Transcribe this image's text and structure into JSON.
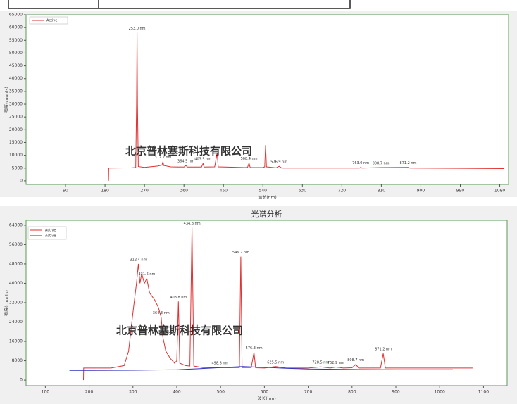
{
  "chart_data": [
    {
      "type": "line",
      "x_label": "波长(nm)",
      "y_label": "强度(counts)",
      "grid": false,
      "xlim": [
        0,
        1100
      ],
      "xticks": [
        90,
        180,
        270,
        360,
        450,
        540,
        630,
        720,
        810,
        900,
        990,
        1080
      ],
      "ylim": [
        -1400,
        65000
      ],
      "yticks": [
        0,
        5000,
        10000,
        15000,
        20000,
        25000,
        30000,
        35000,
        40000,
        45000,
        50000,
        55000,
        60000,
        65000
      ],
      "legend": "upper left",
      "series": [
        {
          "name": "Active",
          "color": "#e03030",
          "x": [
            188,
            188.5,
            240,
            250,
            252,
            253,
            254,
            256,
            270,
            300,
            310,
            312.2,
            314,
            330,
            360,
            364.5,
            368,
            400,
            403.5,
            406,
            430,
            435.8,
            438,
            500,
            505,
            508.4,
            511,
            540,
            544,
            546.1,
            548,
            570,
            576.9,
            583,
            700,
            760,
            763,
            766,
            808.7,
            871.2,
            875,
            1000,
            1090
          ],
          "values": [
            0,
            5000,
            5100,
            5200,
            30000,
            58000,
            30000,
            5600,
            5300,
            5800,
            6200,
            7500,
            6000,
            5500,
            5400,
            6000,
            5400,
            5400,
            6800,
            5400,
            5500,
            11000,
            5500,
            5200,
            5300,
            7000,
            5200,
            5200,
            5500,
            14000,
            5500,
            5100,
            5700,
            5000,
            5000,
            5000,
            5300,
            5000,
            5200,
            5300,
            5000,
            4900,
            4800
          ]
        }
      ],
      "peaks": [
        {
          "label": "253.0 nm",
          "x": 253.0,
          "y": 58000
        },
        {
          "label": "312.2 nm",
          "x": 312.2,
          "y": 7500
        },
        {
          "label": "364.5 nm",
          "x": 364.5,
          "y": 6000
        },
        {
          "label": "403.5 nm",
          "x": 403.5,
          "y": 6800
        },
        {
          "label": "508.4 nm",
          "x": 508.4,
          "y": 7000
        },
        {
          "label": "576.9 nm",
          "x": 576.9,
          "y": 5700
        },
        {
          "label": "763.0 nm",
          "x": 763.0,
          "y": 5300
        },
        {
          "label": "808.7 nm",
          "x": 808.7,
          "y": 5200
        },
        {
          "label": "871.2 nm",
          "x": 871.2,
          "y": 5300
        }
      ],
      "watermark": {
        "text": "北京普林塞斯科技有限公司",
        "color": "#111111"
      }
    },
    {
      "type": "line",
      "title": "光谱分析",
      "x_label": "波长(nm)",
      "y_label": "强度(counts)",
      "grid": false,
      "xlim": [
        56,
        1154
      ],
      "xticks": [
        100,
        200,
        300,
        400,
        500,
        600,
        700,
        800,
        900,
        1000,
        1100
      ],
      "ylim": [
        -2300,
        66000
      ],
      "yticks": [
        0,
        8000,
        16000,
        24000,
        32000,
        40000,
        48000,
        56000,
        64000
      ],
      "legend": "upper left",
      "series": [
        {
          "name": "Active",
          "color": "#e03030",
          "x": [
            187,
            187.5,
            250,
            280,
            290,
            300,
            308,
            312.4,
            316,
            320,
            326,
            331.6,
            338,
            350,
            358,
            364.3,
            368,
            375,
            385,
            395,
            400,
            403.8,
            407,
            420,
            430,
            434.8,
            439,
            460,
            498.8,
            520,
            543,
            546.2,
            549,
            570,
            576.3,
            580,
            600,
            625.5,
            650,
            700,
            728.5,
            750,
            762.9,
            780,
            800,
            808.7,
            815,
            865,
            871.2,
            876,
            1000,
            1075
          ],
          "values": [
            0,
            5000,
            5000,
            6000,
            12000,
            28000,
            40000,
            48000,
            40000,
            44000,
            40000,
            42000,
            36000,
            33000,
            30000,
            26000,
            18000,
            12000,
            9000,
            7000,
            8000,
            32500,
            7000,
            6000,
            5800,
            63000,
            5800,
            5200,
            5200,
            5100,
            5200,
            51000,
            5200,
            5200,
            11500,
            5100,
            5000,
            5600,
            5000,
            5000,
            5500,
            5000,
            5400,
            5000,
            5100,
            6500,
            5000,
            5000,
            11000,
            5000,
            5000,
            5000
          ]
        },
        {
          "name": "Active",
          "color": "#3030c0",
          "x": [
            155,
            300,
            400,
            450,
            500,
            550,
            600,
            650,
            700,
            800,
            900,
            1030
          ],
          "values": [
            4000,
            4100,
            4300,
            4700,
            5200,
            5600,
            5300,
            4900,
            4600,
            4400,
            4300,
            4300
          ]
        }
      ],
      "peaks": [
        {
          "label": "312.4 nm",
          "x": 312.4,
          "y": 48000
        },
        {
          "label": "331.6 nm",
          "x": 331.6,
          "y": 42000
        },
        {
          "label": "364.3 nm",
          "x": 364.3,
          "y": 26000
        },
        {
          "label": "403.8 nm",
          "x": 403.8,
          "y": 32500
        },
        {
          "label": "434.8 nm",
          "x": 434.8,
          "y": 63000
        },
        {
          "label": "498.8 nm",
          "x": 498.8,
          "y": 5200
        },
        {
          "label": "546.2 nm",
          "x": 546.2,
          "y": 51000
        },
        {
          "label": "576.3 nm",
          "x": 576.3,
          "y": 11500
        },
        {
          "label": "625.5 nm",
          "x": 625.5,
          "y": 5600
        },
        {
          "label": "728.5 nm",
          "x": 728.5,
          "y": 5500
        },
        {
          "label": "762.9 nm",
          "x": 762.9,
          "y": 5400
        },
        {
          "label": "808.7 nm",
          "x": 808.7,
          "y": 6500
        },
        {
          "label": "871.2 nm",
          "x": 871.2,
          "y": 11000
        }
      ],
      "watermark": {
        "text": "北京普林塞斯科技有限公司",
        "color": "#1a8fd8"
      }
    }
  ]
}
